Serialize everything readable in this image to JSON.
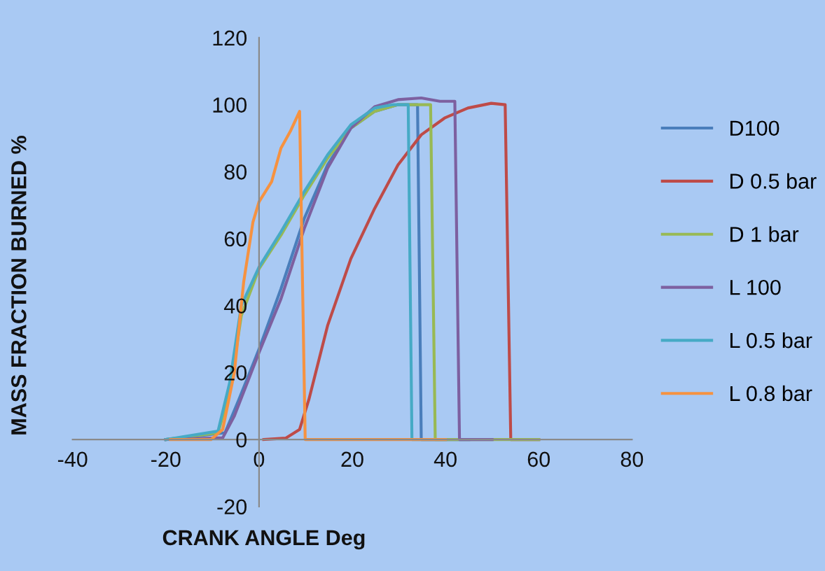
{
  "chart_data": {
    "type": "line",
    "xlabel": "CRANK ANGLE Deg",
    "ylabel": "MASS FRACTION BURNED %",
    "xlim": [
      -40,
      80
    ],
    "xticks": [
      -40,
      -20,
      0,
      20,
      40,
      60,
      80
    ],
    "ylim": [
      -20,
      120
    ],
    "yticks": [
      -20,
      0,
      20,
      40,
      60,
      80,
      100,
      120
    ],
    "grid": false,
    "legend": "right",
    "marker": "none",
    "line_style": "solid",
    "series": [
      {
        "name": "D100",
        "color": "#4a7ebb",
        "x": [
          -20,
          -7.3,
          -4.3,
          0,
          4.7,
          9.7,
          14.7,
          19.7,
          24.8,
          29.8,
          34,
          34.8,
          45
        ],
        "values": [
          0,
          2,
          12,
          27,
          45,
          66,
          82,
          93,
          98,
          100,
          100,
          0,
          0
        ]
      },
      {
        "name": "D 0.5 bar",
        "color": "#be4b48",
        "x": [
          1,
          5.7,
          8.7,
          10.7,
          14.7,
          19.7,
          24.8,
          29.8,
          34.8,
          39.8,
          44.8,
          49.8,
          52.8,
          54,
          60
        ],
        "values": [
          0,
          0.4,
          3,
          12,
          34,
          54,
          69,
          82,
          91,
          96,
          99,
          100.4,
          100,
          0,
          0
        ]
      },
      {
        "name": "D 1 bar",
        "color": "#98b954",
        "x": [
          -20,
          -8.8,
          -6.3,
          -3.8,
          0,
          4.7,
          9.7,
          14.7,
          19.7,
          24.8,
          29.8,
          36.8,
          37.8,
          60
        ],
        "values": [
          0,
          2,
          14,
          37,
          51,
          61,
          73,
          84,
          93,
          98,
          100,
          100,
          0,
          0
        ]
      },
      {
        "name": "L 100",
        "color": "#7d60a0",
        "x": [
          -20,
          -7.8,
          -5.3,
          0,
          4.7,
          9.7,
          14.7,
          19.7,
          24.8,
          29.8,
          34.8,
          38.8,
          42,
          43,
          50
        ],
        "values": [
          0,
          0.5,
          7,
          26,
          42,
          63,
          81,
          93,
          99.4,
          101.5,
          102,
          101,
          101,
          0,
          0
        ]
      },
      {
        "name": "L 0.5 bar",
        "color": "#46aac5",
        "x": [
          -20,
          -8.8,
          -6.3,
          -3.8,
          0,
          4.7,
          9.7,
          14.7,
          19.7,
          24.8,
          28.8,
          32,
          32.8,
          40
        ],
        "values": [
          0,
          2.5,
          17,
          40,
          51.5,
          62,
          74,
          85,
          94,
          99,
          100,
          100,
          0,
          0
        ]
      },
      {
        "name": "L 0.8 bar",
        "color": "#f69240",
        "x": [
          -19,
          -10.3,
          -7.8,
          -5.3,
          -3.3,
          -1.3,
          0,
          2.7,
          4.7,
          6.7,
          8.7,
          9.9,
          40
        ],
        "values": [
          0,
          0,
          3,
          20,
          47,
          65,
          71,
          77,
          87,
          92,
          98,
          0,
          0
        ]
      }
    ]
  }
}
